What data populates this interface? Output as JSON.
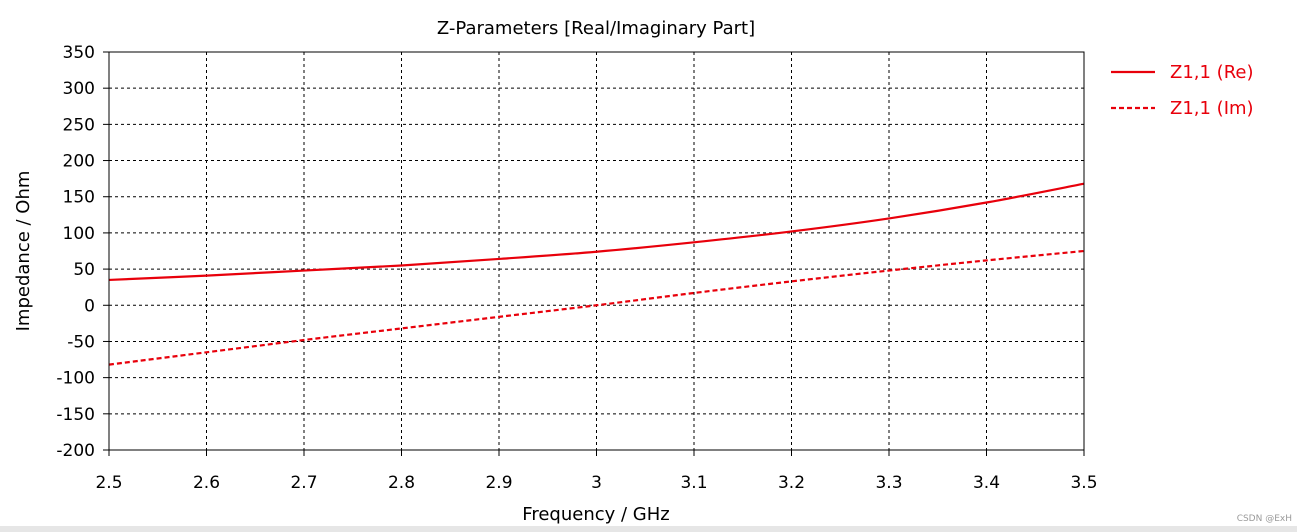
{
  "chart_data": {
    "type": "line",
    "title": "Z-Parameters [Real/Imaginary Part]",
    "xlabel": "Frequency / GHz",
    "ylabel": "Impedance / Ohm",
    "xlim": [
      2.5,
      3.5
    ],
    "ylim": [
      -200,
      350
    ],
    "x_ticks": [
      "2.5",
      "2.6",
      "2.7",
      "2.8",
      "2.9",
      "3",
      "3.1",
      "3.2",
      "3.3",
      "3.4",
      "3.5"
    ],
    "y_ticks": [
      "350",
      "300",
      "250",
      "200",
      "150",
      "100",
      "50",
      "0",
      "-50",
      "-100",
      "-150",
      "-200"
    ],
    "grid": true,
    "legend_position": "right-top",
    "x": [
      2.5,
      2.6,
      2.7,
      2.8,
      2.9,
      3.0,
      3.1,
      3.2,
      3.3,
      3.4,
      3.5
    ],
    "series": [
      {
        "name": "Z1,1 (Re)",
        "color": "#e8000b",
        "style": "solid",
        "values": [
          35,
          41,
          48,
          55,
          64,
          74,
          87,
          102,
          120,
          142,
          168
        ]
      },
      {
        "name": "Z1,1 (Im)",
        "color": "#e8000b",
        "style": "dashed",
        "values": [
          -82,
          -65,
          -48,
          -32,
          -16,
          0,
          17,
          33,
          48,
          62,
          75
        ]
      }
    ]
  },
  "watermark": "CSDN @ExH"
}
